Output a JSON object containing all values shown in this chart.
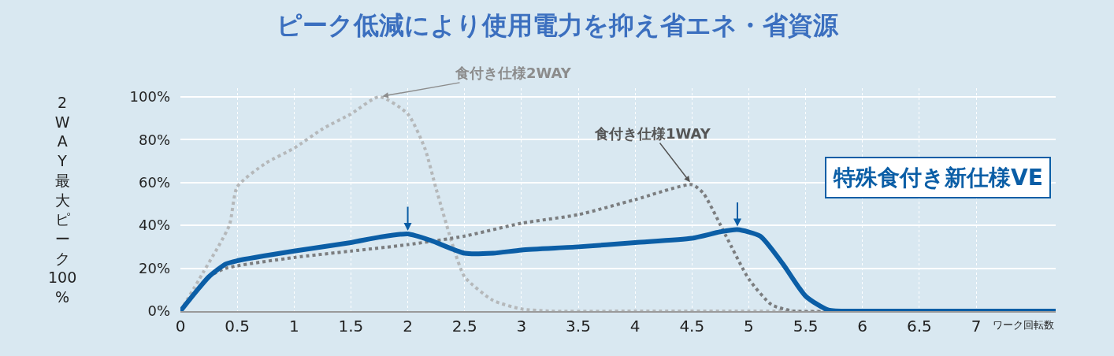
{
  "chart_data": {
    "type": "line",
    "title": "ピーク低減により使用電力を抑え省エネ・省資源",
    "ylabel": "2WAY最大ピーク100%",
    "xlabel": "ワーク回転数",
    "xlim": [
      0,
      7.7
    ],
    "xticks": [
      0,
      0.5,
      1,
      1.5,
      2,
      2.5,
      3,
      3.5,
      4,
      4.5,
      5,
      5.5,
      6,
      6.5,
      7
    ],
    "ylim": [
      0,
      104
    ],
    "yticks": [
      {
        "value": 0,
        "label": "0%"
      },
      {
        "value": 20,
        "label": "20%"
      },
      {
        "value": 40,
        "label": "40%"
      },
      {
        "value": 60,
        "label": "60%"
      },
      {
        "value": 80,
        "label": "80%"
      },
      {
        "value": 100,
        "label": "100%"
      }
    ],
    "grid": true,
    "legend": false,
    "marker": "none",
    "series": [
      {
        "name": "食付き仕様2WAY",
        "color": "#b5b8ba",
        "line_style": "dotted",
        "x": [
          0,
          0.2,
          0.43,
          0.5,
          0.75,
          1,
          1.25,
          1.5,
          1.75,
          2,
          2.15,
          2.25,
          2.4,
          2.5,
          2.75,
          3,
          3.25,
          4,
          5,
          6,
          7,
          7.7
        ],
        "values": [
          0,
          18,
          40,
          58,
          69,
          76,
          85,
          92,
          100,
          92,
          76,
          57,
          30,
          16,
          5,
          1,
          0,
          0,
          0,
          0,
          0,
          0
        ]
      },
      {
        "name": "食付き仕様1WAY",
        "color": "#7b7d7f",
        "line_style": "dotted",
        "x": [
          0,
          0.25,
          0.4,
          1,
          1.5,
          2,
          2.5,
          3,
          3.5,
          4,
          4.5,
          4.6,
          4.8,
          5,
          5.2,
          5.4,
          6,
          7,
          7.7
        ],
        "values": [
          0,
          16,
          20,
          25,
          28,
          31,
          35,
          41,
          45,
          52,
          59,
          55,
          35,
          15,
          3,
          0,
          0,
          0,
          0
        ]
      },
      {
        "name": "特殊食付き新仕様VE",
        "color": "#0b5ea6",
        "line_style": "solid",
        "x": [
          0,
          0.25,
          0.4,
          0.5,
          1,
          1.5,
          1.75,
          2,
          2.2,
          2.5,
          2.75,
          3,
          3.5,
          4,
          4.5,
          4.75,
          4.9,
          5.1,
          5.3,
          5.5,
          5.7,
          6,
          7,
          7.7
        ],
        "values": [
          0,
          16,
          22,
          23.5,
          28,
          32,
          34.5,
          36,
          33,
          27,
          27,
          28.5,
          30,
          32,
          34,
          37,
          38,
          35,
          22,
          7,
          0.5,
          0,
          0,
          0
        ]
      }
    ]
  }
}
